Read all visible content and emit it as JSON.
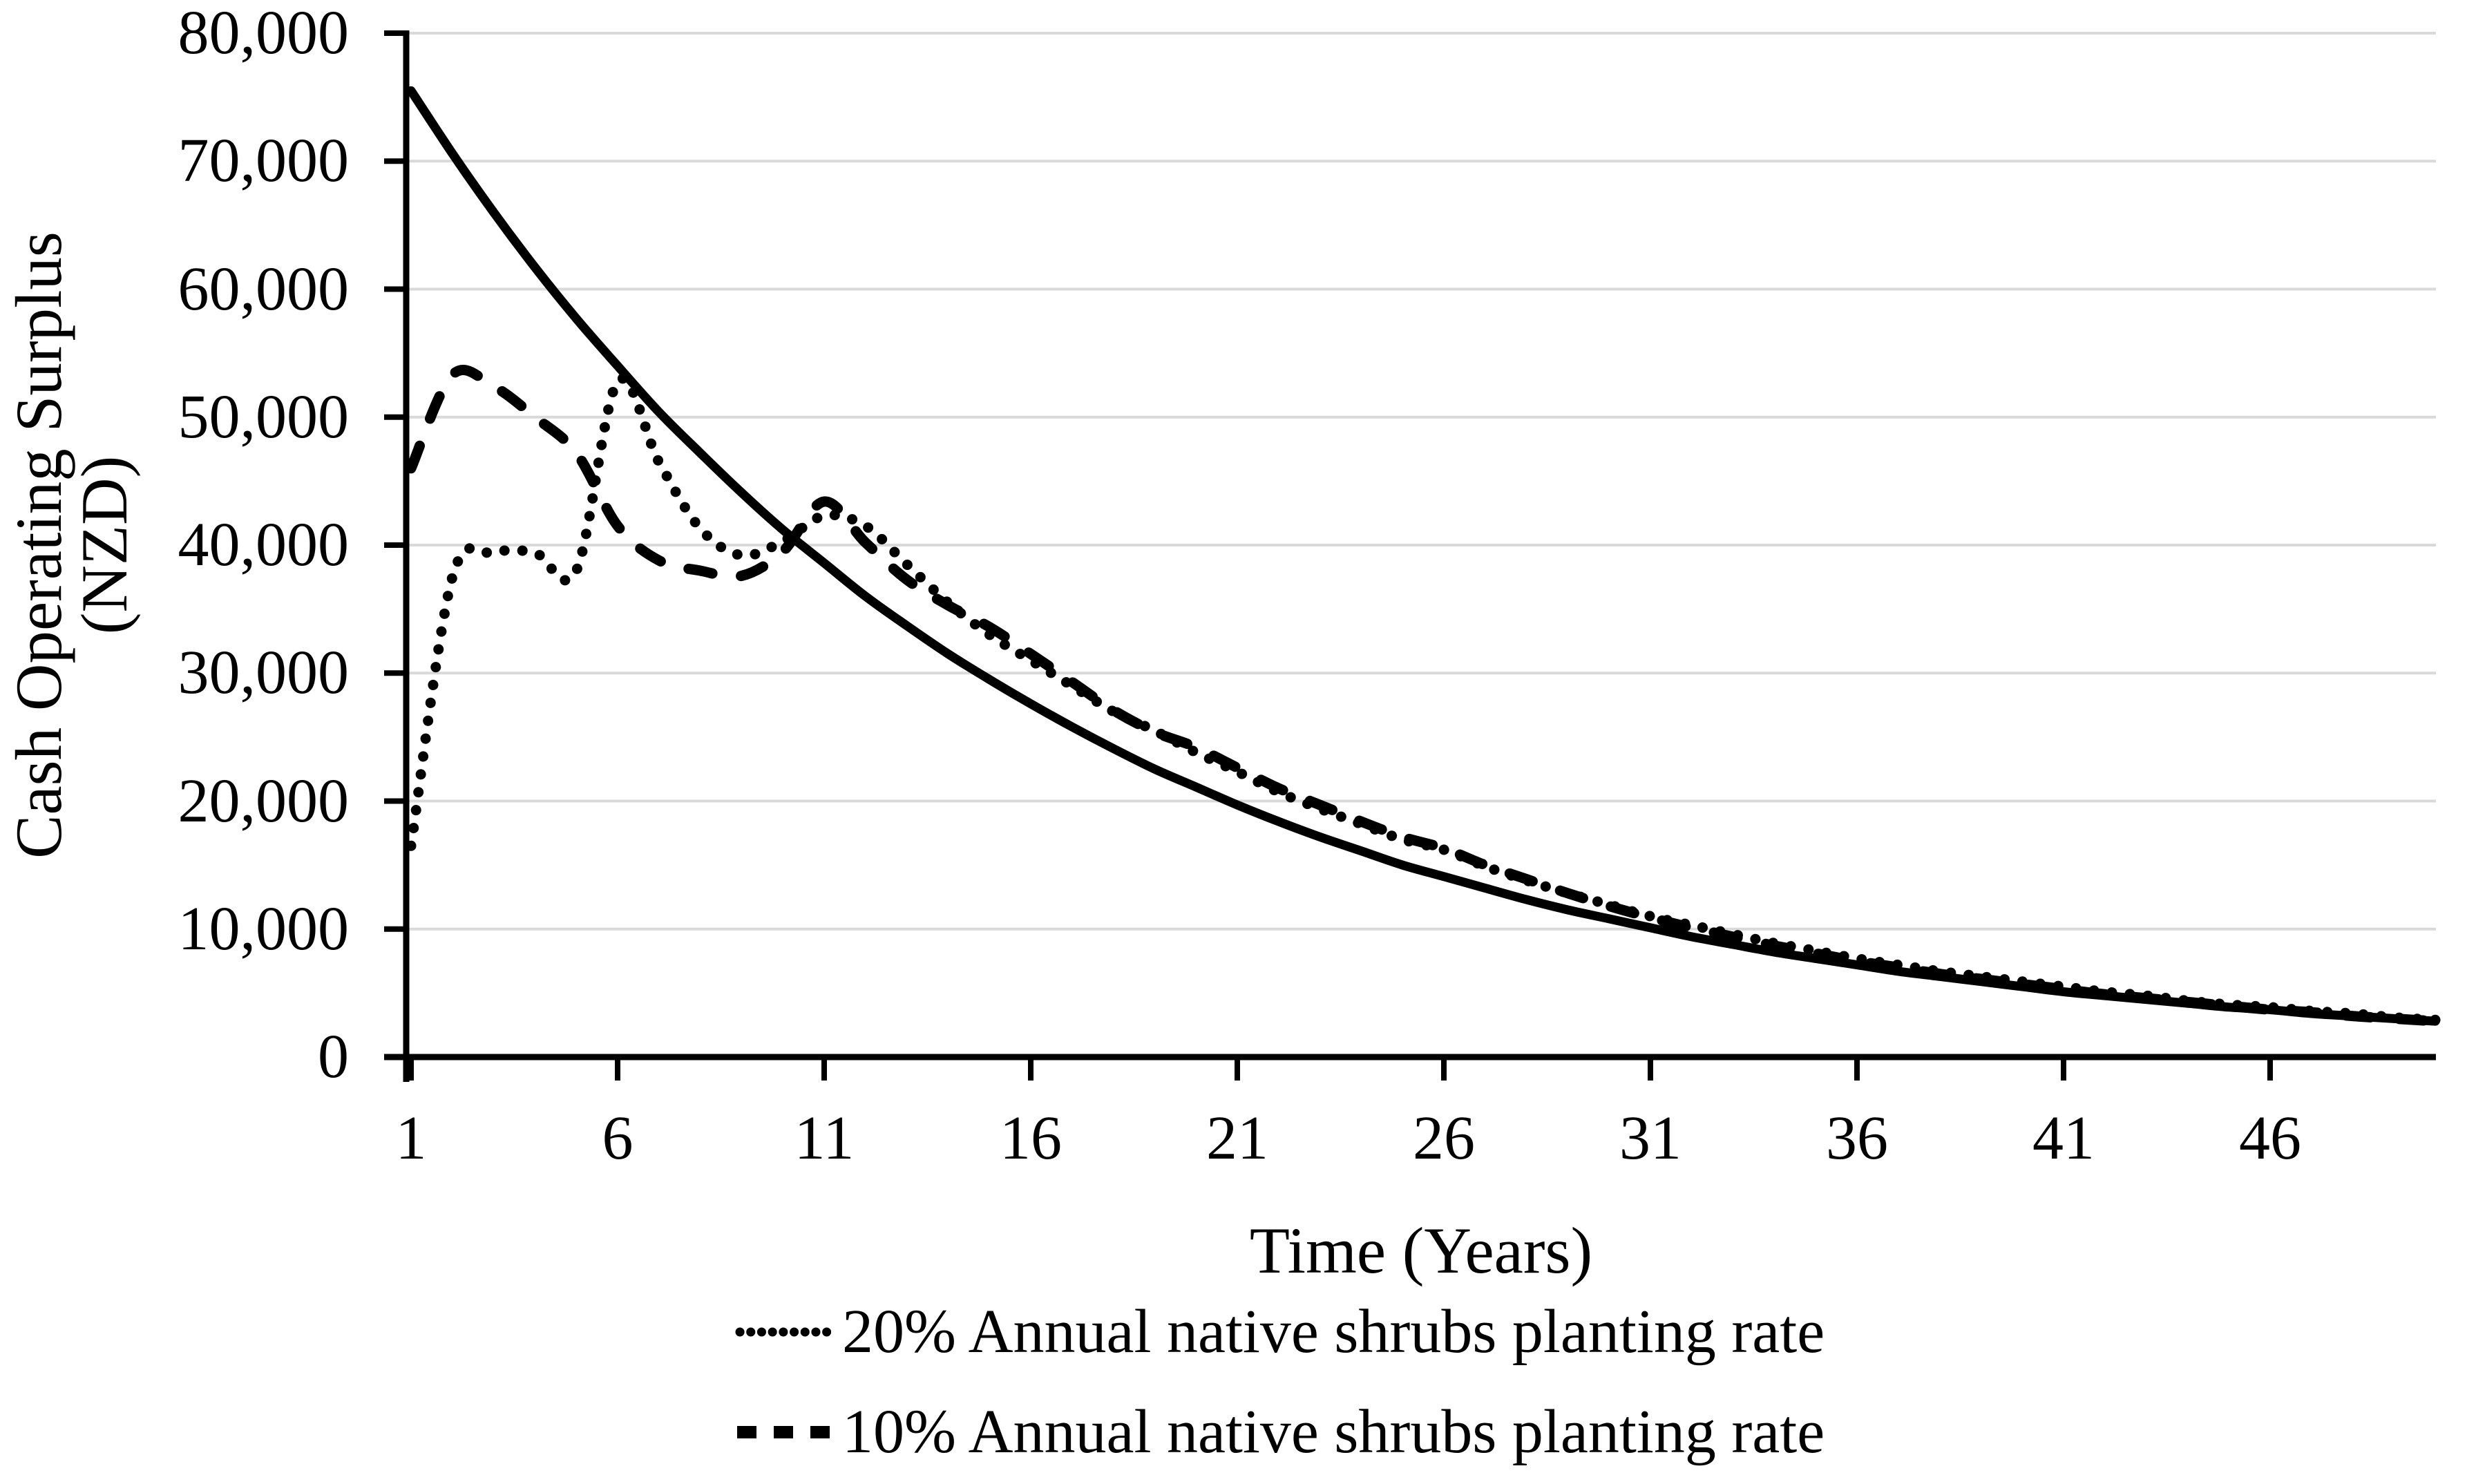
{
  "figure": {
    "background_color": "#FFFFFF",
    "y_axis_title_line1": "Cash Operating Surplus",
    "y_axis_title_line2": "(NZD)",
    "x_axis_title": "Time (Years)",
    "colors": {
      "line": "#000000",
      "gridline": "#D9D9D9",
      "text": "#000000"
    }
  },
  "chart_data": {
    "type": "line",
    "title": "",
    "xlabel": "Time (Years)",
    "ylabel": "Cash Operating Surplus (NZD)",
    "xlim": [
      1,
      50
    ],
    "ylim": [
      0,
      80000
    ],
    "grid": "horizontal",
    "legend_position": "bottom",
    "y_ticks": [
      {
        "value": 0,
        "label": "0"
      },
      {
        "value": 10000,
        "label": "10,000"
      },
      {
        "value": 20000,
        "label": "20,000"
      },
      {
        "value": 30000,
        "label": "30,000"
      },
      {
        "value": 40000,
        "label": "40,000"
      },
      {
        "value": 50000,
        "label": "50,000"
      },
      {
        "value": 60000,
        "label": "60,000"
      },
      {
        "value": 70000,
        "label": "70,000"
      },
      {
        "value": 80000,
        "label": "80,000"
      }
    ],
    "x_ticks": [
      {
        "value": 1,
        "label": "1"
      },
      {
        "value": 6,
        "label": "6"
      },
      {
        "value": 11,
        "label": "11"
      },
      {
        "value": 16,
        "label": "16"
      },
      {
        "value": 21,
        "label": "21"
      },
      {
        "value": 26,
        "label": "26"
      },
      {
        "value": 31,
        "label": "31"
      },
      {
        "value": 36,
        "label": "36"
      },
      {
        "value": 41,
        "label": "41"
      },
      {
        "value": 46,
        "label": "46"
      }
    ],
    "x": [
      1,
      2,
      3,
      4,
      5,
      6,
      7,
      8,
      9,
      10,
      11,
      12,
      13,
      14,
      15,
      16,
      17,
      18,
      19,
      20,
      21,
      22,
      23,
      24,
      25,
      26,
      27,
      28,
      29,
      30,
      31,
      32,
      33,
      34,
      35,
      36,
      37,
      38,
      39,
      40,
      41,
      42,
      43,
      44,
      45,
      46,
      47,
      48,
      49,
      50
    ],
    "series": [
      {
        "name": "baseline-solid",
        "line_style": "solid",
        "legend_label": null,
        "values": [
          75500,
          70600,
          66000,
          61700,
          57700,
          54000,
          50400,
          47200,
          44100,
          41200,
          38600,
          36000,
          33700,
          31500,
          29500,
          27600,
          25800,
          24100,
          22500,
          21100,
          19700,
          18400,
          17200,
          16100,
          15000,
          14100,
          13200,
          12300,
          11500,
          10800,
          10100,
          9400,
          8800,
          8200,
          7700,
          7200,
          6700,
          6300,
          5900,
          5500,
          5100,
          4800,
          4500,
          4200,
          3900,
          3700,
          3400,
          3200,
          3000,
          2800
        ]
      },
      {
        "name": "20-percent-planting",
        "line_style": "dotted",
        "legend_label": "20% Annual native shrubs planting rate",
        "values": [
          16500,
          37500,
          39400,
          39400,
          38000,
          52800,
          46500,
          41300,
          39200,
          40300,
          42300,
          41500,
          38500,
          35500,
          33000,
          31000,
          29000,
          27000,
          25500,
          23800,
          22300,
          20700,
          19400,
          18200,
          17000,
          16200,
          14900,
          13800,
          12800,
          11900,
          11000,
          10300,
          9600,
          8900,
          8300,
          7700,
          7200,
          6700,
          6300,
          5900,
          5500,
          5100,
          4800,
          4400,
          4100,
          3900,
          3600,
          3400,
          3100,
          2900
        ]
      },
      {
        "name": "10-percent-planting",
        "line_style": "dashed",
        "legend_label": "10% Annual native shrubs planting rate",
        "values": [
          46000,
          53300,
          52400,
          50000,
          47200,
          41500,
          38800,
          38000,
          37600,
          39500,
          43400,
          40200,
          37300,
          35300,
          33600,
          31500,
          29300,
          27100,
          25400,
          24200,
          22600,
          21000,
          19700,
          18400,
          17200,
          16300,
          15000,
          13900,
          12800,
          11800,
          10900,
          10100,
          9400,
          8700,
          8100,
          7500,
          7000,
          6500,
          6100,
          5700,
          5300,
          4900,
          4600,
          4300,
          4000,
          3700,
          3500,
          3200,
          3000,
          2800
        ]
      }
    ]
  }
}
